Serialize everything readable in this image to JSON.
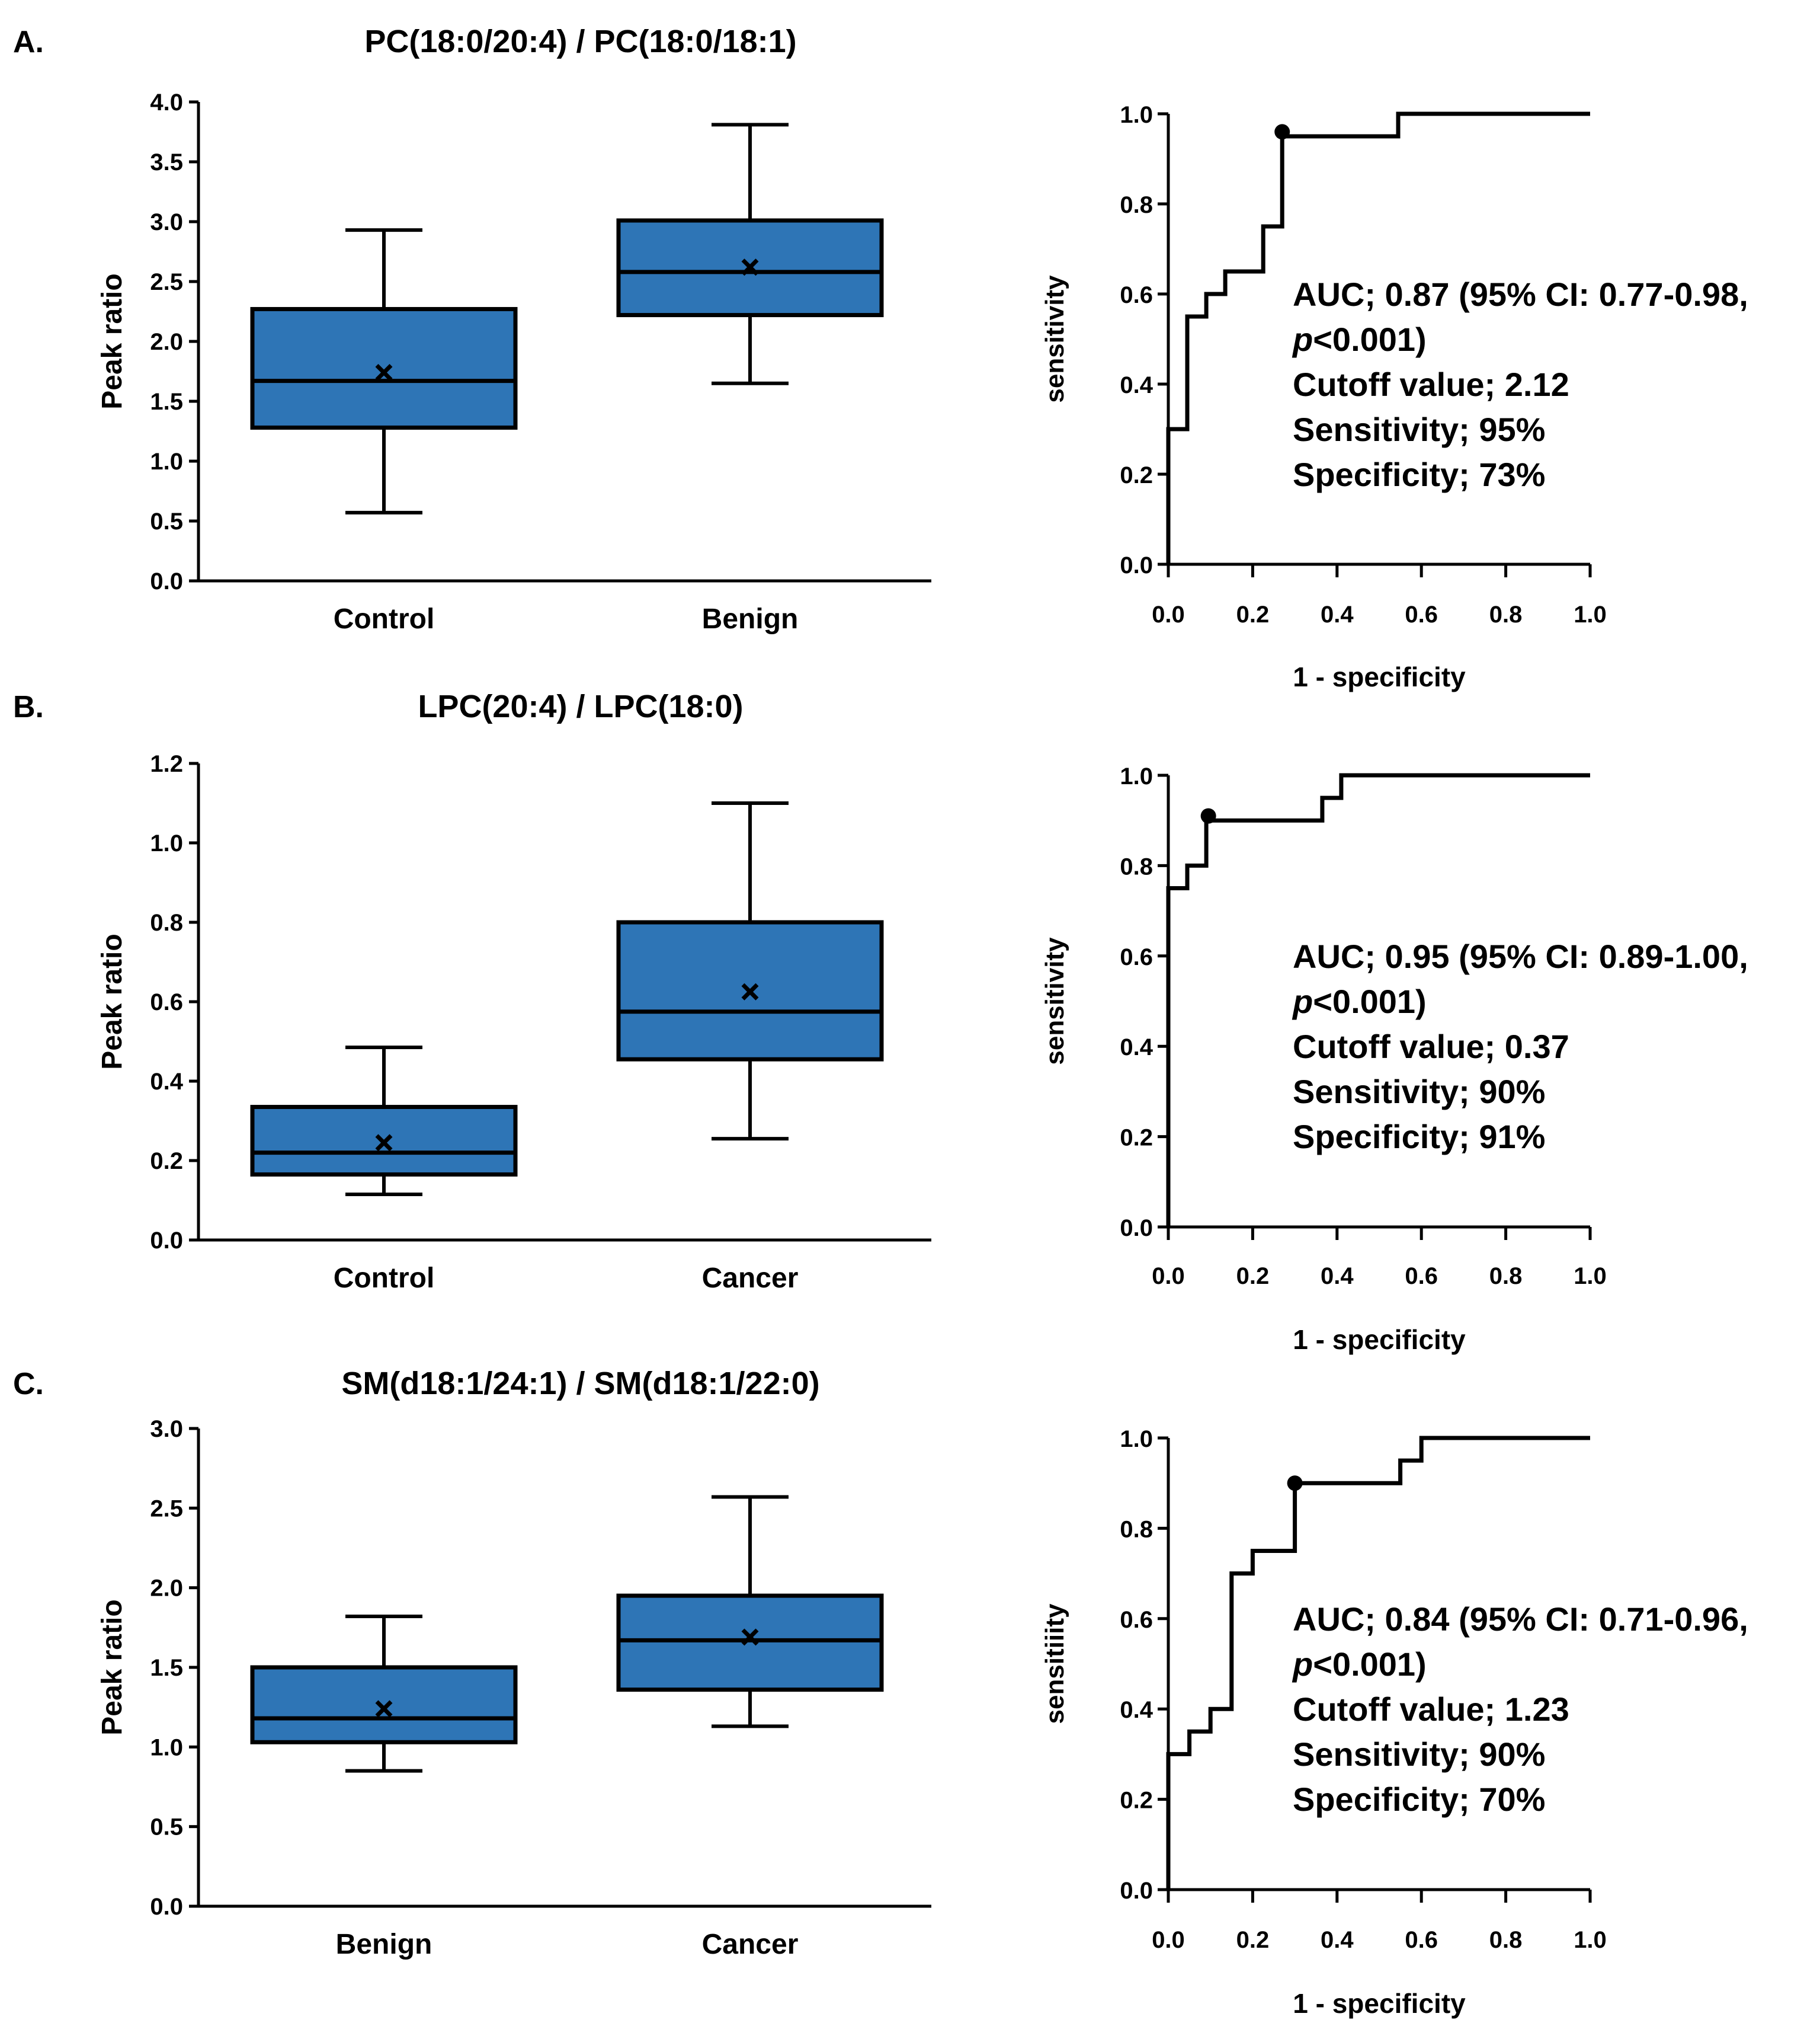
{
  "colors": {
    "box_fill": "#2e75b6",
    "line": "#000000"
  },
  "panels": [
    {
      "letter": "A.",
      "boxplot": {
        "title": "PC(18:0/20:4) / PC(18:0/18:1)",
        "ylabel": "Peak ratio",
        "ylim": [
          0,
          4.0
        ],
        "yticks": [
          "0.0",
          "0.5",
          "1.0",
          "1.5",
          "2.0",
          "2.5",
          "3.0",
          "3.5",
          "4.0"
        ]
      },
      "roc": {
        "xlabel": "1 - specificity",
        "ylabel": "sensitivity",
        "annotation": {
          "auc_line": "AUC; 0.87 (95% CI: 0.77-0.98,",
          "p_italic": "p",
          "p_value": "<0.001)",
          "cutoff": "Cutoff value; 2.12",
          "sensitivity": "Sensitivity; 95%",
          "specificity": "Specificity; 73%"
        }
      }
    },
    {
      "letter": "B.",
      "boxplot": {
        "title": "LPC(20:4) / LPC(18:0)",
        "ylabel": "Peak ratio",
        "ylim": [
          0,
          1.2
        ],
        "yticks": [
          "0.0",
          "0.2",
          "0.4",
          "0.6",
          "0.8",
          "1.0",
          "1.2"
        ]
      },
      "roc": {
        "xlabel": "1 - specificity",
        "ylabel": "sensitivity",
        "annotation": {
          "auc_line": "AUC; 0.95 (95% CI: 0.89-1.00,",
          "p_italic": "p",
          "p_value": "<0.001)",
          "cutoff": "Cutoff value; 0.37",
          "sensitivity": "Sensitivity; 90%",
          "specificity": "Specificity; 91%"
        }
      }
    },
    {
      "letter": "C.",
      "boxplot": {
        "title": "SM(d18:1/24:1) / SM(d18:1/22:0)",
        "ylabel": "Peak ratio",
        "ylim": [
          0,
          3.0
        ],
        "yticks": [
          "0.0",
          "0.5",
          "1.0",
          "1.5",
          "2.0",
          "2.5",
          "3.0"
        ]
      },
      "roc": {
        "xlabel": "1 - specificity",
        "ylabel": "sensitiiity",
        "annotation": {
          "auc_line": "AUC; 0.84 (95% CI: 0.71-0.96,",
          "p_italic": "p",
          "p_value": "<0.001)",
          "cutoff": "Cutoff value; 1.23",
          "sensitivity": "Sensitivity; 90%",
          "specificity": "Specificity; 70%"
        }
      }
    }
  ],
  "chart_data": [
    {
      "type": "box",
      "title": "PC(18:0/20:4) / PC(18:0/18:1)",
      "ylabel": "Peak ratio",
      "ylim": [
        0,
        4.0
      ],
      "categories": [
        "Control",
        "Benign"
      ],
      "boxes": [
        {
          "min": 0.57,
          "q1": 1.28,
          "median": 1.67,
          "q3": 2.27,
          "max": 2.93,
          "mean": 1.74
        },
        {
          "min": 1.65,
          "q1": 2.22,
          "median": 2.58,
          "q3": 3.01,
          "max": 3.81,
          "mean": 2.62
        }
      ]
    },
    {
      "type": "line",
      "xlabel": "1 - specificity",
      "ylabel": "sensitivity",
      "xlim": [
        0,
        1.0
      ],
      "ylim": [
        0,
        1.0
      ],
      "xticks": [
        "0.0",
        "0.2",
        "0.4",
        "0.6",
        "0.8",
        "1.0"
      ],
      "yticks": [
        "0.0",
        "0.2",
        "0.4",
        "0.6",
        "0.8",
        "1.0"
      ],
      "x": [
        0,
        0,
        0.045,
        0.045,
        0.09,
        0.09,
        0.135,
        0.135,
        0.225,
        0.225,
        0.27,
        0.27,
        0.545,
        0.545,
        1.0
      ],
      "y": [
        0,
        0.3,
        0.3,
        0.55,
        0.55,
        0.6,
        0.6,
        0.65,
        0.65,
        0.75,
        0.75,
        0.95,
        0.95,
        1.0,
        1.0
      ],
      "cutoff_point": {
        "x": 0.27,
        "y": 0.96
      }
    },
    {
      "type": "box",
      "title": "LPC(20:4) / LPC(18:0)",
      "ylabel": "Peak ratio",
      "ylim": [
        0,
        1.2
      ],
      "categories": [
        "Control",
        "Cancer"
      ],
      "boxes": [
        {
          "min": 0.115,
          "q1": 0.165,
          "median": 0.22,
          "q3": 0.335,
          "max": 0.485,
          "mean": 0.245
        },
        {
          "min": 0.255,
          "q1": 0.455,
          "median": 0.575,
          "q3": 0.8,
          "max": 1.1,
          "mean": 0.625
        }
      ]
    },
    {
      "type": "line",
      "xlabel": "1 - specificity",
      "ylabel": "sensitivity",
      "xlim": [
        0,
        1.0
      ],
      "ylim": [
        0,
        1.0
      ],
      "xticks": [
        "0.0",
        "0.2",
        "0.4",
        "0.6",
        "0.8",
        "1.0"
      ],
      "yticks": [
        "0.0",
        "0.2",
        "0.4",
        "0.6",
        "0.8",
        "1.0"
      ],
      "x": [
        0,
        0,
        0.045,
        0.045,
        0.09,
        0.09,
        0.365,
        0.365,
        0.41,
        0.41,
        1.0
      ],
      "y": [
        0,
        0.75,
        0.75,
        0.8,
        0.8,
        0.9,
        0.9,
        0.95,
        0.95,
        1.0,
        1.0
      ],
      "cutoff_point": {
        "x": 0.095,
        "y": 0.91
      }
    },
    {
      "type": "box",
      "title": "SM(d18:1/24:1) / SM(d18:1/22:0)",
      "ylabel": "Peak ratio",
      "ylim": [
        0,
        3.0
      ],
      "categories": [
        "Benign",
        "Cancer"
      ],
      "boxes": [
        {
          "min": 0.85,
          "q1": 1.03,
          "median": 1.18,
          "q3": 1.5,
          "max": 1.82,
          "mean": 1.24
        },
        {
          "min": 1.13,
          "q1": 1.36,
          "median": 1.67,
          "q3": 1.95,
          "max": 2.57,
          "mean": 1.69
        }
      ]
    },
    {
      "type": "line",
      "xlabel": "1 - specificity",
      "ylabel": "sensitiiity",
      "xlim": [
        0,
        1.0
      ],
      "ylim": [
        0,
        1.0
      ],
      "xticks": [
        "0.0",
        "0.2",
        "0.4",
        "0.6",
        "0.8",
        "1.0"
      ],
      "yticks": [
        "0.0",
        "0.2",
        "0.4",
        "0.6",
        "0.8",
        "1.0"
      ],
      "x": [
        0,
        0,
        0.05,
        0.05,
        0.1,
        0.1,
        0.15,
        0.15,
        0.2,
        0.2,
        0.3,
        0.3,
        0.55,
        0.55,
        0.6,
        0.6,
        1.0
      ],
      "y": [
        0,
        0.3,
        0.3,
        0.35,
        0.35,
        0.4,
        0.4,
        0.7,
        0.7,
        0.75,
        0.75,
        0.9,
        0.9,
        0.95,
        0.95,
        1.0,
        1.0
      ],
      "cutoff_point": {
        "x": 0.3,
        "y": 0.9
      }
    }
  ]
}
